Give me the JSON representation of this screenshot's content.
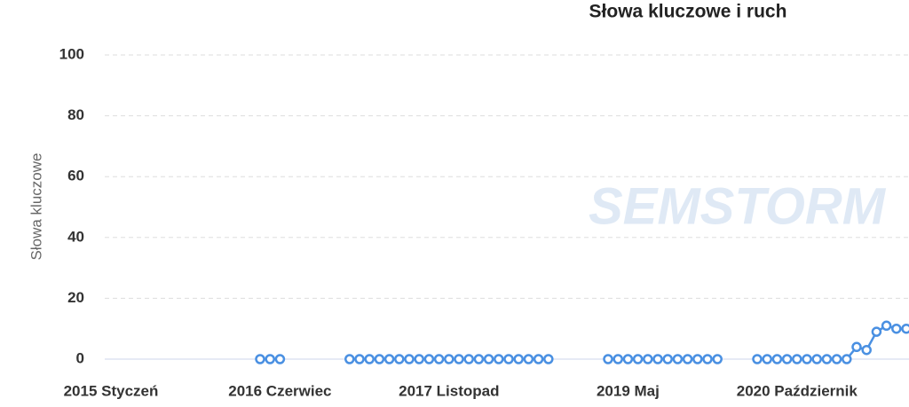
{
  "chart_data": {
    "type": "line",
    "title": "Słowa kluczowe i ruch",
    "y_label": "Słowa kluczowe",
    "watermark": "SEMSTORM",
    "categories": [
      "2015 Styczeń",
      null,
      null,
      null,
      null,
      null,
      null,
      null,
      null,
      null,
      null,
      null,
      null,
      null,
      null,
      null,
      null,
      "2016 Czerwiec",
      null,
      null,
      null,
      null,
      null,
      null,
      null,
      null,
      null,
      null,
      null,
      null,
      null,
      null,
      null,
      null,
      "2017 Listopad",
      null,
      null,
      null,
      null,
      null,
      null,
      null,
      null,
      null,
      null,
      null,
      null,
      null,
      null,
      null,
      null,
      null,
      "2019 Maj",
      null,
      null,
      null,
      null,
      null,
      null,
      null,
      null,
      null,
      null,
      null,
      null,
      null,
      null,
      null,
      null,
      "2020 Październik",
      null,
      null,
      null,
      null,
      null,
      null,
      null,
      null,
      null,
      null,
      null
    ],
    "series": [
      {
        "name": "Słowa kluczowe",
        "color": "#4a90e2",
        "values": [
          null,
          null,
          null,
          null,
          null,
          null,
          null,
          null,
          null,
          null,
          null,
          null,
          null,
          null,
          null,
          0,
          0,
          0,
          null,
          null,
          null,
          null,
          null,
          null,
          0,
          0,
          0,
          0,
          0,
          0,
          0,
          0,
          0,
          0,
          0,
          0,
          0,
          0,
          0,
          0,
          0,
          0,
          0,
          0,
          0,
          null,
          null,
          null,
          null,
          null,
          0,
          0,
          0,
          0,
          0,
          0,
          0,
          0,
          0,
          0,
          0,
          0,
          null,
          null,
          null,
          0,
          0,
          0,
          0,
          0,
          0,
          0,
          0,
          0,
          0,
          4,
          3,
          9,
          11,
          10,
          10
        ]
      }
    ],
    "ylim": [
      0,
      100
    ],
    "yticks": [
      0,
      20,
      40,
      60,
      80,
      100
    ],
    "grid": true
  }
}
